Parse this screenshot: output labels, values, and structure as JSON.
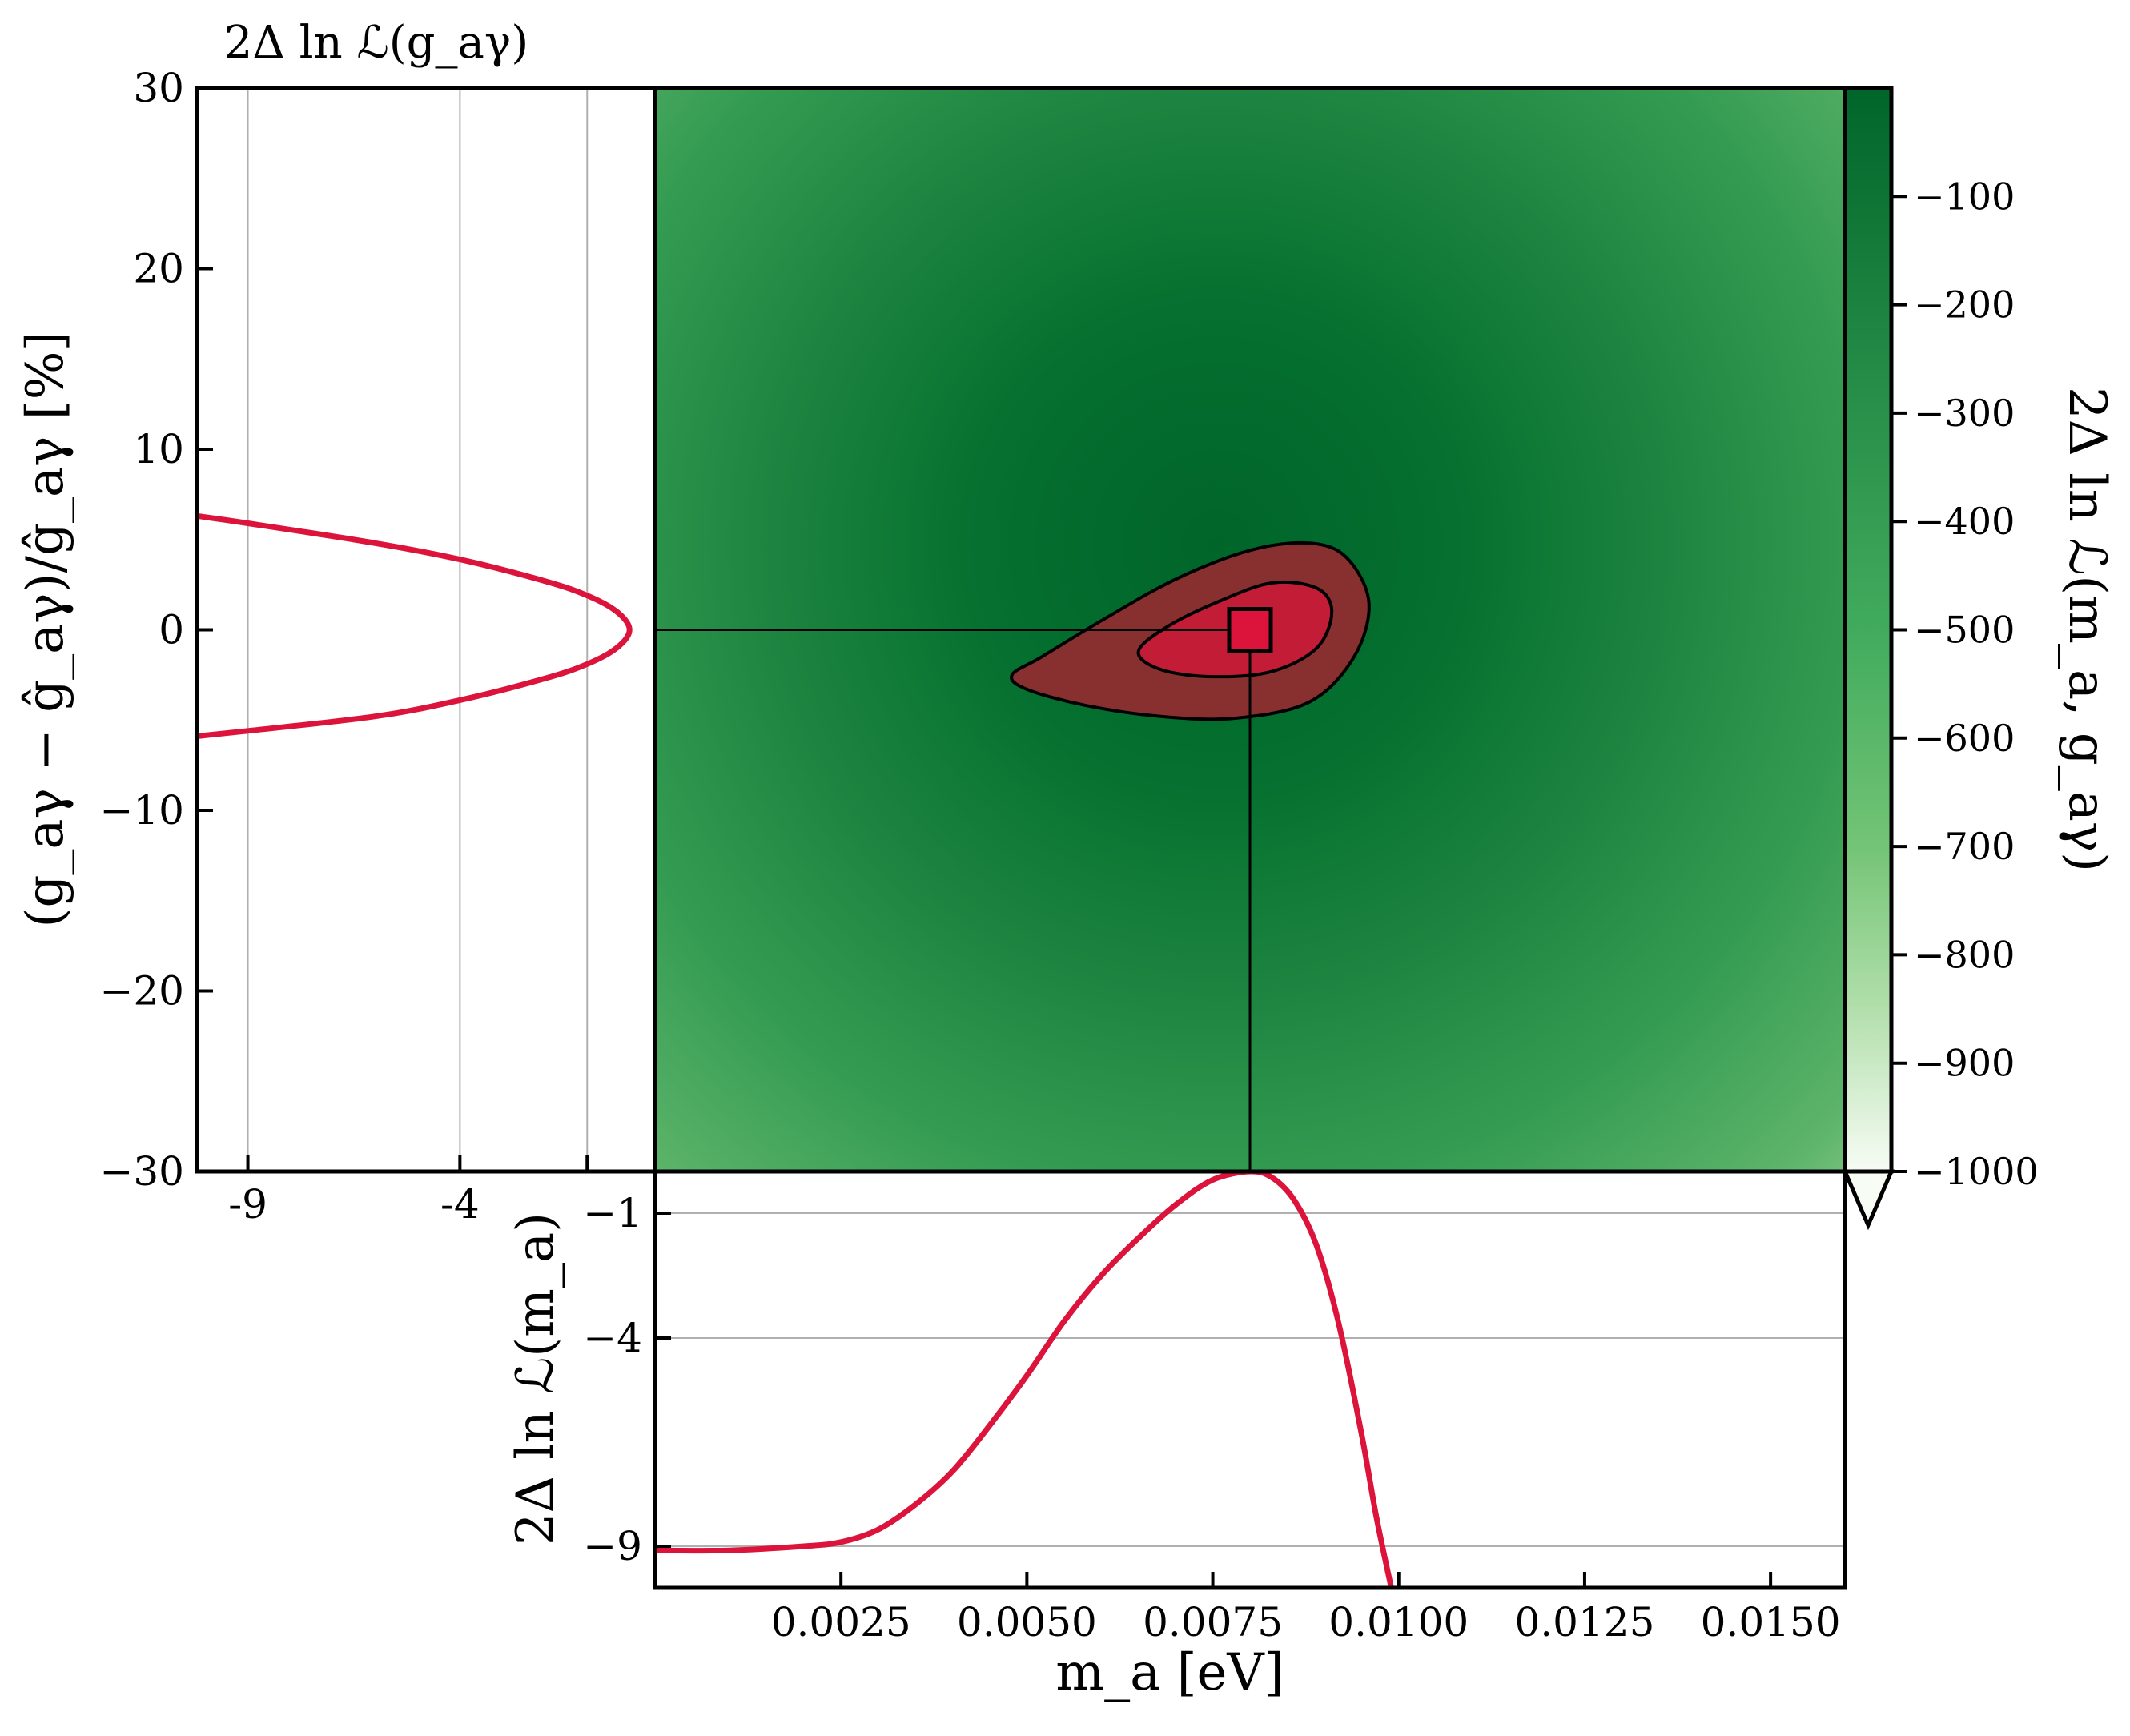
{
  "chart_data": [
    {
      "type": "heatmap",
      "panel": "main",
      "xlim": [
        0.0,
        0.016
      ],
      "ylim": [
        -30,
        30
      ],
      "ylabel": "(g_aγ − ĝ_aγ)/ĝ_aγ [%]",
      "yticks": [
        30,
        20,
        10,
        0,
        -10,
        -20,
        -30
      ],
      "ytick_labels": [
        "30",
        "20",
        "10",
        "0",
        "−10",
        "−20",
        "−30"
      ],
      "best_fit": {
        "m_a": 0.008,
        "delta_g_pct": 0.0
      },
      "colorscale": "Greens",
      "colorbar": {
        "label": "2Δ ln ℒ(m_a, g_aγ)",
        "range": [
          -1000,
          0
        ],
        "ticks": [
          -100,
          -200,
          -300,
          -400,
          -500,
          -600,
          -700,
          -800,
          -900,
          -1000
        ],
        "tick_labels": [
          "−100",
          "−200",
          "−300",
          "−400",
          "−500",
          "−600",
          "−700",
          "−800",
          "−900",
          "−1000"
        ],
        "extend": "min"
      },
      "contours": [
        {
          "level": "outer",
          "points": [
            [
              0.0048,
              -2.5
            ],
            [
              0.0052,
              -1.5
            ],
            [
              0.006,
              0.5
            ],
            [
              0.007,
              2.8
            ],
            [
              0.008,
              4.4
            ],
            [
              0.0088,
              4.8
            ],
            [
              0.0093,
              4.0
            ],
            [
              0.0096,
              1.5
            ],
            [
              0.0094,
              -1.5
            ],
            [
              0.0088,
              -4.0
            ],
            [
              0.0078,
              -4.9
            ],
            [
              0.0068,
              -4.8
            ],
            [
              0.0058,
              -4.2
            ],
            [
              0.005,
              -3.3
            ]
          ]
        },
        {
          "level": "inner",
          "points": [
            [
              0.0065,
              -1.2
            ],
            [
              0.0069,
              0.2
            ],
            [
              0.0076,
              1.6
            ],
            [
              0.0083,
              2.6
            ],
            [
              0.0089,
              2.3
            ],
            [
              0.0091,
              1.0
            ],
            [
              0.0089,
              -1.0
            ],
            [
              0.0083,
              -2.3
            ],
            [
              0.0075,
              -2.6
            ],
            [
              0.0068,
              -2.2
            ]
          ]
        }
      ]
    },
    {
      "type": "line",
      "panel": "left",
      "title": "2Δ ln ℒ(g_aγ)",
      "xlim": [
        -10.2,
        0.6
      ],
      "xticks": [
        -9,
        -4,
        -1
      ],
      "xtick_labels": [
        "-9",
        "-4",
        ""
      ],
      "series": [
        {
          "x": [
            -10.2,
            -9.0,
            -6.0,
            -4.0,
            -2.0,
            -1.0,
            -0.3,
            0.0,
            -0.3,
            -1.0,
            -2.0,
            -4.0,
            -6.0,
            -9.0,
            -10.2
          ],
          "y": [
            6.3,
            5.9,
            4.8,
            3.9,
            2.7,
            1.9,
            1.0,
            0.0,
            -1.0,
            -1.9,
            -2.7,
            -3.9,
            -4.8,
            -5.6,
            -5.9
          ]
        }
      ]
    },
    {
      "type": "line",
      "panel": "bottom",
      "ylabel": "2Δ ln ℒ(m_a)",
      "xlabel": "m_a [eV]",
      "xlim": [
        0.0,
        0.016
      ],
      "ylim": [
        -10.0,
        0.0
      ],
      "yticks": [
        -1,
        -4,
        -9
      ],
      "ytick_labels": [
        "−1",
        "−4",
        "−9"
      ],
      "xticks": [
        0.0025,
        0.005,
        0.0075,
        0.01,
        0.0125,
        0.015
      ],
      "xtick_labels": [
        "0.0025",
        "0.0050",
        "0.0075",
        "0.0100",
        "0.0125",
        "0.0150"
      ],
      "series": [
        {
          "x": [
            0.0,
            0.001,
            0.002,
            0.0025,
            0.003,
            0.0035,
            0.004,
            0.0045,
            0.005,
            0.0055,
            0.006,
            0.0065,
            0.007,
            0.0075,
            0.008,
            0.0083,
            0.0086,
            0.0089,
            0.0092,
            0.0095,
            0.0097,
            0.0099
          ],
          "y": [
            -9.1,
            -9.1,
            -9.0,
            -8.9,
            -8.6,
            -8.0,
            -7.2,
            -6.1,
            -4.9,
            -3.6,
            -2.5,
            -1.6,
            -0.8,
            -0.2,
            0.0,
            -0.15,
            -0.7,
            -1.8,
            -3.7,
            -6.3,
            -8.3,
            -10.0
          ]
        }
      ]
    }
  ]
}
